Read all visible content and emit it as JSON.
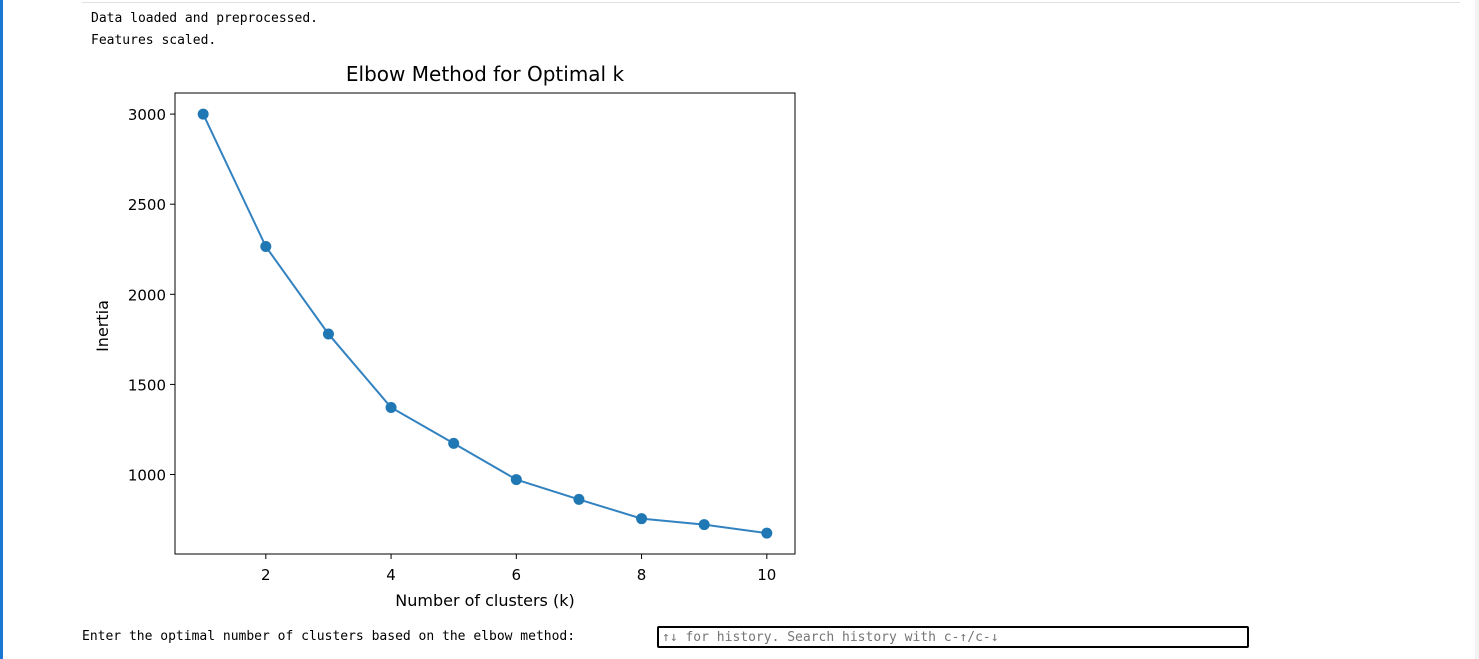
{
  "output": {
    "lines": [
      "Data loaded and preprocessed.",
      "Features scaled."
    ]
  },
  "chart_data": {
    "type": "line",
    "title": "Elbow Method for Optimal k",
    "xlabel": "Number of clusters (k)",
    "ylabel": "Inertia",
    "x": [
      1,
      2,
      3,
      4,
      5,
      6,
      7,
      8,
      9,
      10
    ],
    "y": [
      3000,
      2265,
      1780,
      1372,
      1173,
      972,
      862,
      755,
      722,
      675
    ],
    "xticks": [
      2,
      4,
      6,
      8,
      10
    ],
    "yticks": [
      1000,
      1500,
      2000,
      2500,
      3000
    ],
    "xlim": [
      0.55,
      10.45
    ],
    "ylim": [
      559,
      3117
    ],
    "markers": true,
    "grid": false,
    "line_color": "#3282c0",
    "marker_color": "#1f77b4"
  },
  "prompt": {
    "label": "Enter the optimal number of clusters based on the elbow method: ",
    "placeholder": "↑↓ for history. Search history with c-↑/c-↓",
    "value": ""
  },
  "colors": {
    "accent": "#1976d2"
  }
}
